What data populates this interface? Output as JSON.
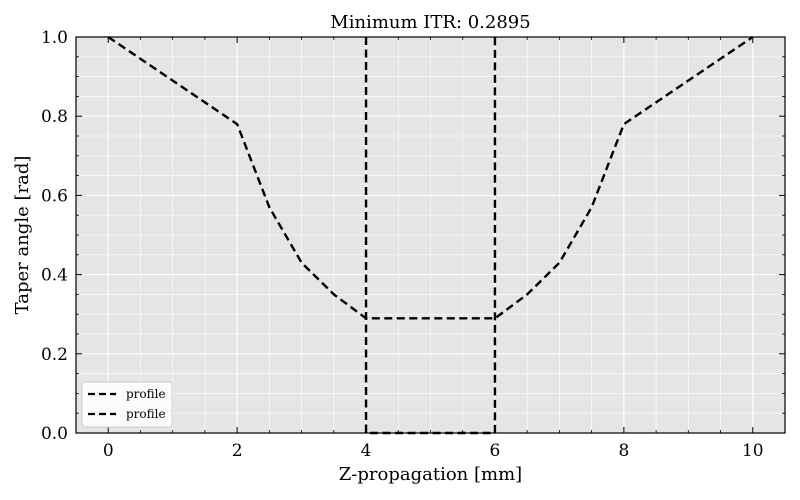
{
  "chart_data": {
    "type": "line",
    "title": "Minimum ITR: 0.2895",
    "xlabel": "Z-propagation [mm]",
    "ylabel": "Taper angle [rad]",
    "xlim": [
      -0.5,
      10.5
    ],
    "ylim": [
      0.0,
      1.0
    ],
    "xticks": [
      0,
      2,
      4,
      6,
      8,
      10
    ],
    "yticks": [
      0.0,
      0.2,
      0.4,
      0.6,
      0.8,
      1.0
    ],
    "xtick_labels": [
      "0",
      "2",
      "4",
      "6",
      "8",
      "10"
    ],
    "ytick_labels": [
      "0.0",
      "0.2",
      "0.4",
      "0.6",
      "0.8",
      "1.0"
    ],
    "grid": true,
    "background": "#e5e5e5",
    "line_color": "#000000",
    "line_style": "dashed",
    "legend_placement": "lower-left",
    "series": [
      {
        "name": "profile",
        "x": [
          0,
          2,
          2.5,
          3.0,
          3.5,
          4.0,
          4.5,
          5.0,
          5.5,
          6.0,
          6.5,
          7.0,
          7.5,
          8.0,
          10.0
        ],
        "y": [
          1.0,
          0.78,
          0.57,
          0.43,
          0.35,
          0.2895,
          0.2895,
          0.2895,
          0.2895,
          0.2895,
          0.35,
          0.43,
          0.57,
          0.78,
          1.0
        ]
      },
      {
        "name": "profile",
        "x": [
          4.0,
          4.0,
          6.0,
          6.0
        ],
        "y": [
          1.0,
          0.0,
          0.0,
          1.0
        ]
      }
    ]
  }
}
